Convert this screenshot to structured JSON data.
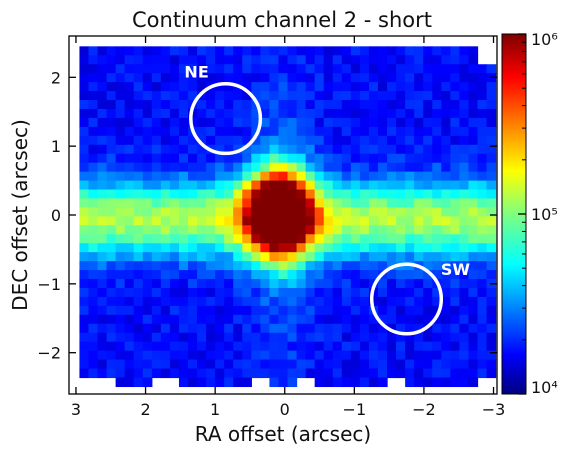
{
  "chart_data": {
    "type": "heatmap",
    "title": "Continuum channel 2 - short",
    "xlabel": "RA offset (arcsec)",
    "ylabel": "DEC offset (arcsec)",
    "xlim": [
      3.1,
      -3.05
    ],
    "ylim": [
      -2.6,
      2.6
    ],
    "x_ticks": [
      3,
      2,
      1,
      0,
      -1,
      -2,
      -3
    ],
    "x_tick_labels": [
      "3",
      "2",
      "1",
      "0",
      "−1",
      "−2",
      "−3"
    ],
    "y_ticks": [
      -2,
      -1,
      0,
      1,
      2
    ],
    "y_tick_labels": [
      "−2",
      "−1",
      "0",
      "1",
      "2"
    ],
    "colormap": "jet",
    "color_scale": "log",
    "colorbar_range": [
      10000,
      1000000
    ],
    "colorbar_tick_labels": [
      "10⁴",
      "10⁵",
      "10⁶"
    ],
    "peak_position": [
      0.15,
      0.1
    ],
    "annotations": [
      {
        "label": "NE",
        "ra": 0.85,
        "dec": 1.4,
        "radius": 0.5
      },
      {
        "label": "SW",
        "ra": -1.75,
        "dec": -1.22,
        "radius": 0.5
      }
    ],
    "annotation_color": "#ffffff"
  }
}
